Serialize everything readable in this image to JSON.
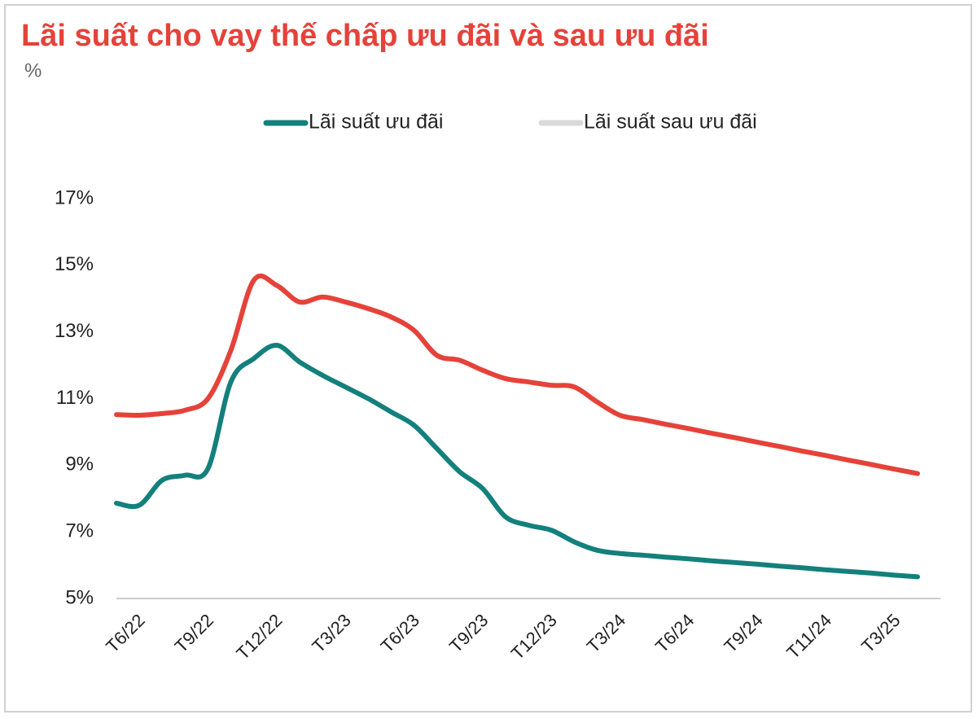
{
  "chart_data": {
    "type": "line",
    "title": "Lãi suất cho vay thế chấp ưu đãi và sau ưu đãi",
    "subtitle": "%",
    "categories": [
      null,
      "T6/22",
      null,
      null,
      "T9/22",
      null,
      null,
      "T12/22",
      null,
      null,
      "T3/23",
      null,
      null,
      "T6/23",
      null,
      null,
      "T9/23",
      null,
      null,
      "T12/23",
      null,
      null,
      "T3/24",
      null,
      null,
      "T6/24",
      null,
      null,
      "T9/24",
      null,
      null,
      "T11/24",
      null,
      null,
      "T3/25",
      null
    ],
    "series": [
      {
        "name": "Lãi suất ưu đãi",
        "color": "#13807c",
        "values": [
          7.86,
          7.8,
          8.55,
          8.7,
          8.9,
          11.5,
          12.2,
          12.6,
          12.1,
          11.7,
          11.35,
          11.0,
          10.6,
          10.2,
          9.5,
          8.8,
          8.3,
          7.45,
          7.2,
          7.05,
          6.7,
          6.45,
          6.35,
          6.3,
          6.24,
          6.19,
          6.13,
          6.08,
          6.03,
          5.97,
          5.92,
          5.86,
          5.81,
          5.76,
          5.7,
          5.65
        ]
      },
      {
        "name": "Lãi suất sau ưu đãi",
        "color": "#e5423a",
        "legend_color": "#d9d9d9",
        "values": [
          10.52,
          10.5,
          10.55,
          10.65,
          11.0,
          12.45,
          14.55,
          14.4,
          13.9,
          14.05,
          13.9,
          13.7,
          13.45,
          13.05,
          12.3,
          12.15,
          11.85,
          11.6,
          11.5,
          11.4,
          11.35,
          10.9,
          10.5,
          10.37,
          10.23,
          10.1,
          9.96,
          9.83,
          9.69,
          9.56,
          9.42,
          9.29,
          9.15,
          9.02,
          8.88,
          8.75
        ]
      }
    ],
    "ylim": [
      5,
      17
    ],
    "yticks": [
      {
        "value": 5,
        "label": "5%"
      },
      {
        "value": 7,
        "label": "7%"
      },
      {
        "value": 9,
        "label": "9%"
      },
      {
        "value": 11,
        "label": "11%"
      },
      {
        "value": 13,
        "label": "13%"
      },
      {
        "value": 15,
        "label": "15%"
      },
      {
        "value": 17,
        "label": "17%"
      }
    ],
    "grid": false,
    "legend": "top"
  }
}
